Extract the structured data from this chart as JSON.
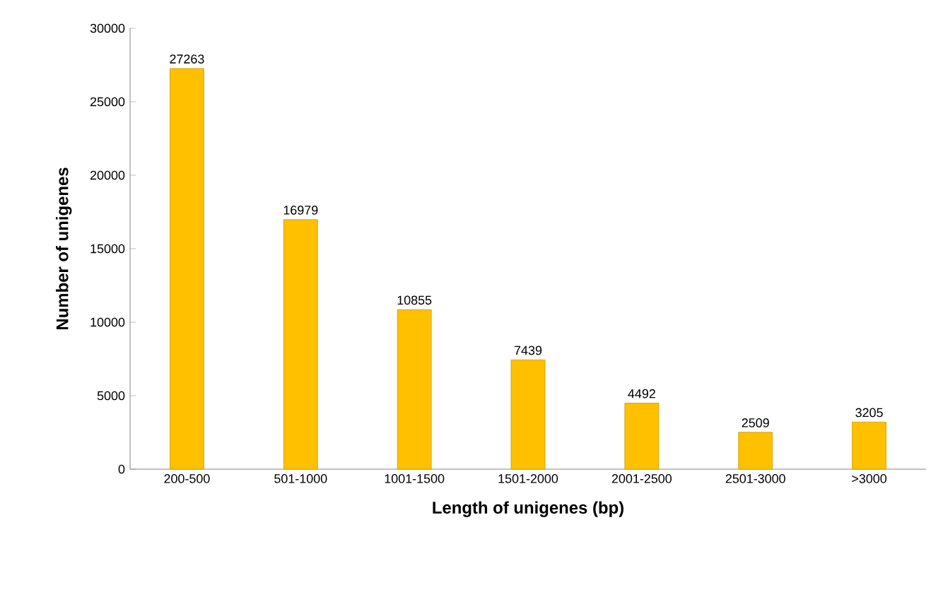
{
  "chart_data": {
    "type": "bar",
    "xlabel": "Length of unigenes (bp)",
    "ylabel": "Number of unigenes",
    "categories": [
      "200-500",
      "501-1000",
      "1001-1500",
      "1501-2000",
      "2001-2500",
      "2501-3000",
      ">3000"
    ],
    "values": [
      27263,
      16979,
      10855,
      7439,
      4492,
      2509,
      3205
    ],
    "color": "#ffc000",
    "ylim": [
      0,
      30000
    ],
    "yticks": [
      0,
      5000,
      10000,
      15000,
      20000,
      25000,
      30000
    ],
    "data_labels": true
  }
}
